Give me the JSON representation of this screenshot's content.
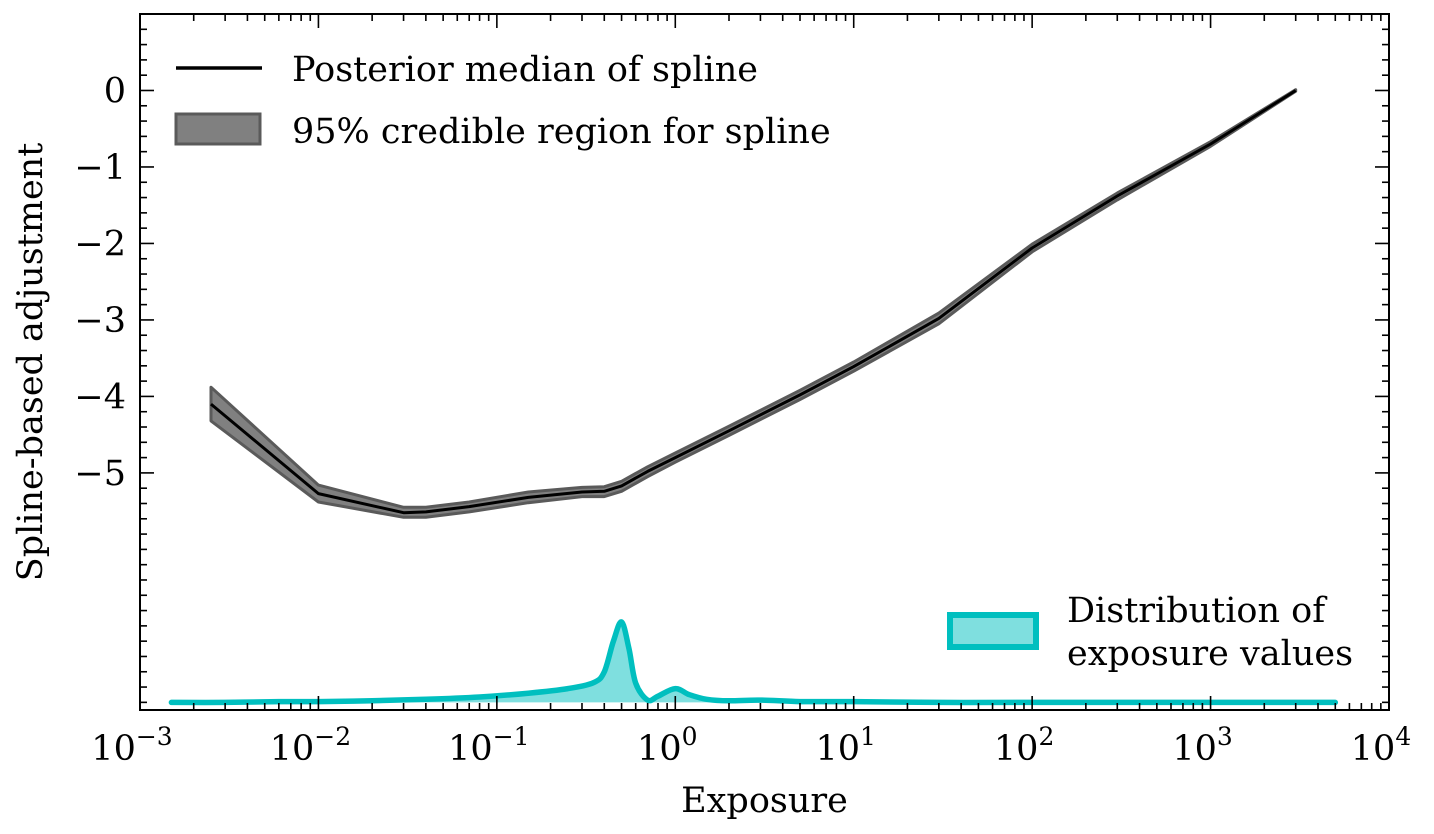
{
  "chart_data": {
    "type": "line",
    "title": "",
    "xlabel": "Exposure",
    "ylabel": "Spline-based adjustment",
    "x_scale": "log",
    "xlim": [
      0.001,
      10000
    ],
    "ylim": [
      -8.1,
      1.0
    ],
    "grid": false,
    "x_ticks": [
      {
        "value": 0.001,
        "base": "10",
        "exp": "−3"
      },
      {
        "value": 0.01,
        "base": "10",
        "exp": "−2"
      },
      {
        "value": 0.1,
        "base": "10",
        "exp": "−1"
      },
      {
        "value": 1,
        "base": "10",
        "exp": "0"
      },
      {
        "value": 10,
        "base": "10",
        "exp": "1"
      },
      {
        "value": 100,
        "base": "10",
        "exp": "2"
      },
      {
        "value": 1000,
        "base": "10",
        "exp": "3"
      },
      {
        "value": 10000,
        "base": "10",
        "exp": "4"
      }
    ],
    "y_ticks": [
      {
        "value": 0,
        "label": "0"
      },
      {
        "value": -1,
        "label": "−1"
      },
      {
        "value": -2,
        "label": "−2"
      },
      {
        "value": -3,
        "label": "−3"
      },
      {
        "value": -4,
        "label": "−4"
      },
      {
        "value": -5,
        "label": "−5"
      }
    ],
    "series": [
      {
        "name": "Posterior median of spline",
        "kind": "line",
        "color": "#000000",
        "x": [
          0.0025,
          0.01,
          0.03,
          0.04,
          0.07,
          0.15,
          0.3,
          0.4,
          0.5,
          0.7,
          1.0,
          2.0,
          5.0,
          10,
          30,
          100,
          300,
          1000,
          3000
        ],
        "y": [
          -4.1,
          -5.27,
          -5.52,
          -5.51,
          -5.44,
          -5.32,
          -5.25,
          -5.24,
          -5.17,
          -4.98,
          -4.8,
          -4.45,
          -3.98,
          -3.61,
          -2.98,
          -2.06,
          -1.38,
          -0.7,
          0.0
        ]
      },
      {
        "name": "95% credible region for spline",
        "kind": "band",
        "color": "#808080",
        "x": [
          0.0025,
          0.01,
          0.03,
          0.04,
          0.07,
          0.15,
          0.3,
          0.4,
          0.5,
          0.7,
          1.0,
          2.0,
          5.0,
          10,
          30,
          100,
          300,
          1000,
          3000
        ],
        "lower": [
          -4.32,
          -5.38,
          -5.58,
          -5.58,
          -5.51,
          -5.39,
          -5.31,
          -5.31,
          -5.24,
          -5.05,
          -4.86,
          -4.51,
          -4.04,
          -3.67,
          -3.05,
          -2.11,
          -1.43,
          -0.73,
          -0.01
        ],
        "upper": [
          -3.88,
          -5.16,
          -5.45,
          -5.45,
          -5.38,
          -5.25,
          -5.19,
          -5.18,
          -5.11,
          -4.92,
          -4.74,
          -4.39,
          -3.92,
          -3.55,
          -2.91,
          -2.01,
          -1.34,
          -0.67,
          0.01
        ]
      },
      {
        "name": "Distribution of exposure values",
        "kind": "density",
        "color": "#00BFBF",
        "fill_opacity": 0.5,
        "baseline": -8.0,
        "x": [
          0.0015,
          0.003,
          0.006,
          0.01,
          0.02,
          0.04,
          0.08,
          0.15,
          0.25,
          0.35,
          0.4,
          0.45,
          0.5,
          0.55,
          0.6,
          0.7,
          0.8,
          1.0,
          1.2,
          1.5,
          2.0,
          3.0,
          5.0,
          10,
          30,
          100,
          1000,
          5000
        ],
        "y": [
          -8.0,
          -8.0,
          -7.99,
          -7.99,
          -7.98,
          -7.96,
          -7.93,
          -7.88,
          -7.82,
          -7.74,
          -7.6,
          -7.2,
          -6.95,
          -7.3,
          -7.75,
          -7.97,
          -7.92,
          -7.82,
          -7.9,
          -7.96,
          -7.98,
          -7.97,
          -7.99,
          -7.99,
          -8.0,
          -8.0,
          -8.0,
          -8.0
        ]
      }
    ],
    "legend_top_left": [
      {
        "label": "Posterior median of spline"
      },
      {
        "label": "95% credible region for spline"
      }
    ],
    "legend_bottom_right": {
      "lines": [
        "Distribution of",
        "exposure values"
      ]
    }
  }
}
